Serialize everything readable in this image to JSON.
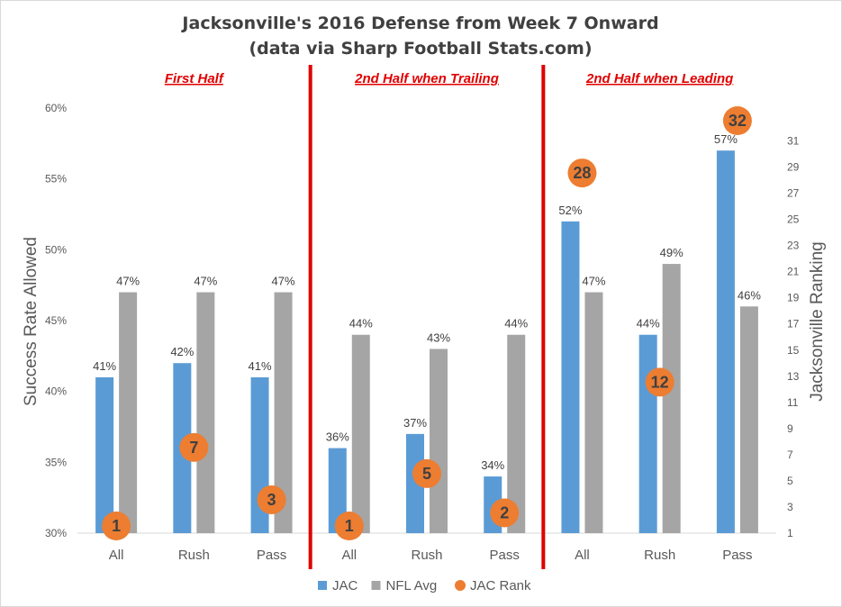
{
  "chart_data": {
    "type": "bar",
    "title": "Jacksonville's 2016 Defense from Week 7 Onward",
    "subtitle": "(data via Sharp Football Stats.com)",
    "ylabel": "Success Rate Allowed",
    "y2label": "Jacksonville Ranking",
    "ylim": [
      30,
      60
    ],
    "yticks": [
      "30%",
      "35%",
      "40%",
      "45%",
      "50%",
      "55%",
      "60%"
    ],
    "y2lim": [
      1,
      32
    ],
    "y2ticks": [
      "1",
      "3",
      "5",
      "7",
      "9",
      "11",
      "13",
      "15",
      "17",
      "19",
      "21",
      "23",
      "25",
      "27",
      "29",
      "31"
    ],
    "grid": false,
    "legend_position": "bottom",
    "groups": [
      {
        "title": "First Half",
        "categories": [
          "All",
          "Rush",
          "Pass"
        ],
        "jac": [
          41,
          42,
          41
        ],
        "nfl": [
          47,
          47,
          47
        ],
        "rank": [
          1,
          7,
          3
        ]
      },
      {
        "title": "2nd Half when Trailing",
        "categories": [
          "All",
          "Rush",
          "Pass"
        ],
        "jac": [
          36,
          37,
          34
        ],
        "nfl": [
          44,
          43,
          44
        ],
        "rank": [
          1,
          5,
          2
        ]
      },
      {
        "title": "2nd Half when Leading",
        "categories": [
          "All",
          "Rush",
          "Pass"
        ],
        "jac": [
          52,
          44,
          57
        ],
        "nfl": [
          47,
          49,
          46
        ],
        "rank": [
          28,
          12,
          32
        ]
      }
    ],
    "series": [
      {
        "name": "JAC",
        "color": "#5b9bd5"
      },
      {
        "name": "NFL Avg",
        "color": "#a5a5a5"
      },
      {
        "name": "JAC Rank",
        "color": "#ed7d31"
      }
    ],
    "divider_color": "#e00000"
  }
}
